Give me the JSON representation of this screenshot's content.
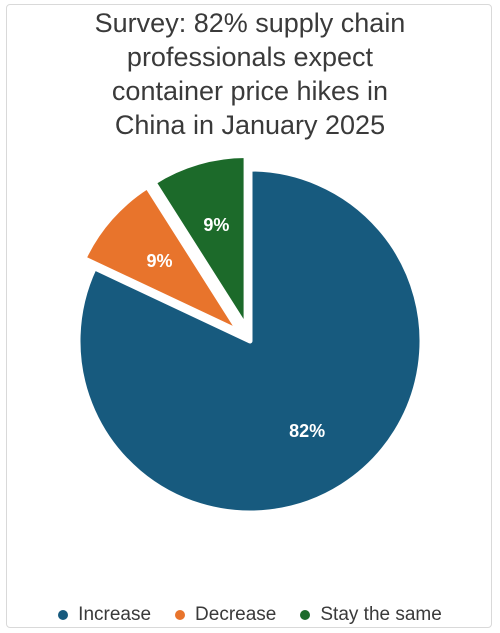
{
  "chart_data": {
    "type": "pie",
    "title_lines": [
      "Survey: 82% supply chain",
      "professionals expect",
      "container price hikes in",
      "China in January 2025"
    ],
    "slices": [
      {
        "label": "Increase",
        "value": 82,
        "value_label": "82%",
        "color": "#175a7e"
      },
      {
        "label": "Decrease",
        "value": 9,
        "value_label": "9%",
        "color": "#e8742c"
      },
      {
        "label": "Stay the same",
        "value": 9,
        "value_label": "9%",
        "color": "#1c6a2a"
      }
    ],
    "legend_position": "bottom",
    "exploded_slices": [
      "Decrease",
      "Stay the same"
    ]
  }
}
